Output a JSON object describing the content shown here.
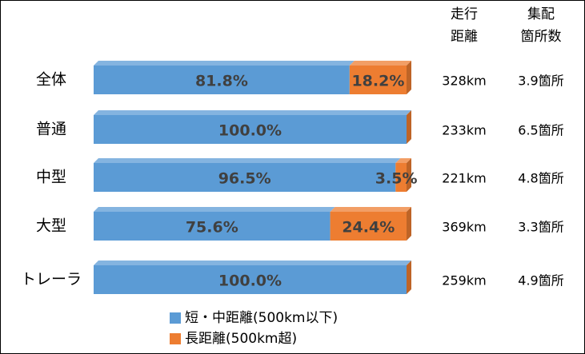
{
  "chart_data": {
    "type": "stacked-bar-horizontal",
    "categories": [
      "全体",
      "普通",
      "中型",
      "大型",
      "トレーラ"
    ],
    "series": [
      {
        "name": "短・中距離(500km以下)",
        "color": "#5b9bd5",
        "values": [
          81.8,
          100.0,
          96.5,
          75.6,
          100.0
        ],
        "value_labels": [
          "81.8%",
          "100.0%",
          "96.5%",
          "75.6%",
          "100.0%"
        ]
      },
      {
        "name": "長距離(500km超)",
        "color": "#ed7d31",
        "values": [
          18.2,
          0,
          3.5,
          24.4,
          0
        ],
        "value_labels": [
          "18.2%",
          null,
          "3.5%",
          "24.4%",
          null
        ]
      }
    ],
    "xlim": [
      0,
      100
    ],
    "columns": [
      {
        "header": [
          "走行",
          "距離"
        ],
        "values": [
          "328km",
          "233km",
          "221km",
          "369km",
          "259km"
        ]
      },
      {
        "header": [
          "集配",
          "箇所数"
        ],
        "values": [
          "3.9箇所",
          "6.5箇所",
          "4.8箇所",
          "3.3箇所",
          "4.9箇所"
        ]
      }
    ]
  }
}
